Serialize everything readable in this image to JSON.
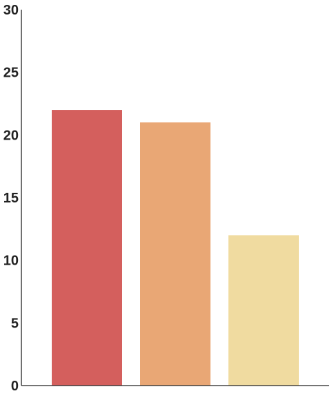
{
  "chart_data": {
    "type": "bar",
    "title": "",
    "xlabel": "",
    "ylabel": "",
    "categories": [
      "",
      "",
      ""
    ],
    "values": [
      22,
      21,
      12
    ],
    "colors": [
      "#d45f5d",
      "#e9a775",
      "#f0dba0"
    ],
    "ylim": [
      0,
      30
    ],
    "yticks": [
      0,
      5,
      10,
      15,
      20,
      25,
      30
    ],
    "ytick_labels": [
      "0",
      "5",
      "10",
      "15",
      "20",
      "25",
      "30"
    ],
    "grid": false,
    "legend": "none"
  }
}
